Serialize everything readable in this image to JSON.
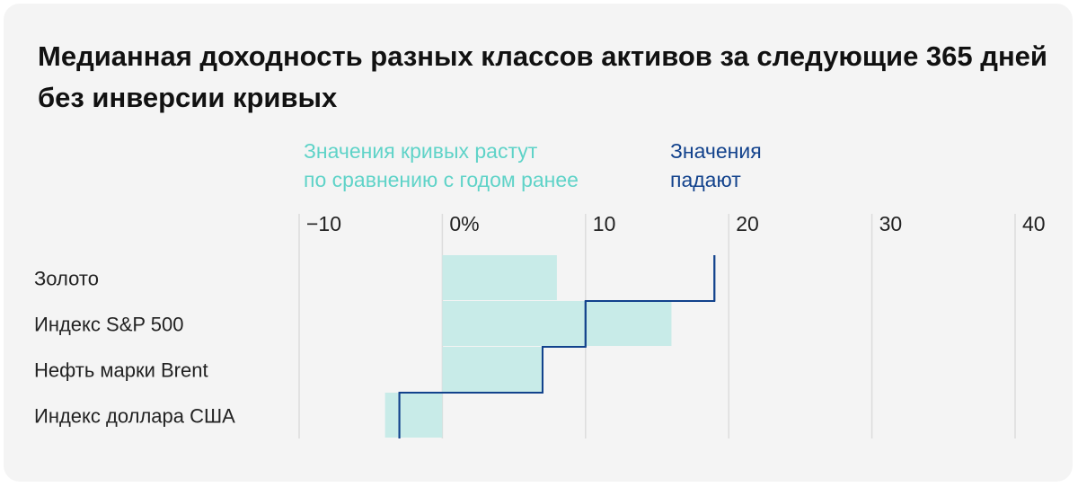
{
  "chart_data": {
    "type": "bar",
    "orientation": "horizontal",
    "title": "Медианная доходность разных классов активов за следующие 365 дней без инверсии кривых",
    "categories": [
      "Золото",
      "Индекс S&P 500",
      "Нефть марки Brent",
      "Индекс доллара США"
    ],
    "series": [
      {
        "name": "Значения кривых растут по сравнению с годом ранее",
        "type": "bar",
        "color": "#c8ebe8",
        "values": [
          8.0,
          16.0,
          7.0,
          -4.0
        ]
      },
      {
        "name": "Значения падают",
        "type": "step",
        "color": "#12428c",
        "values": [
          19.0,
          10.0,
          7.0,
          -3.0
        ]
      }
    ],
    "xaxis": {
      "min": -10,
      "max": 40,
      "ticks": [
        {
          "value": -10,
          "label": "−10"
        },
        {
          "value": 0,
          "label": "0%"
        },
        {
          "value": 10,
          "label": "10"
        },
        {
          "value": 20,
          "label": "20"
        },
        {
          "value": 30,
          "label": "30"
        },
        {
          "value": 40,
          "label": "40"
        }
      ]
    },
    "legend": {
      "placement": "top"
    },
    "grid": true
  },
  "legend": {
    "rise_line1": "Значения кривых растут",
    "rise_line2": "по сравнению с годом ранее",
    "fall_line1": "Значения",
    "fall_line2": "падают"
  }
}
